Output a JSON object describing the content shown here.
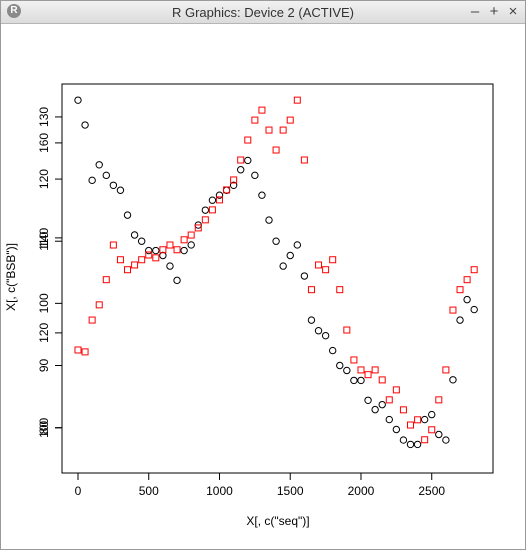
{
  "window_title": "R Graphics: Device 2 (ACTIVE)",
  "window_controls": [
    "–",
    "+",
    "×"
  ],
  "chart_data": {
    "type": "scatter",
    "xlabel": "X[, c(\"seq\")]",
    "ylabel": "X[, c(\"BSB\")]",
    "x": [
      0,
      50,
      100,
      150,
      200,
      250,
      300,
      350,
      400,
      450,
      500,
      550,
      600,
      650,
      700,
      750,
      800,
      850,
      900,
      950,
      1000,
      1050,
      1100,
      1150,
      1200,
      1250,
      1300,
      1350,
      1400,
      1450,
      1500,
      1550,
      1600,
      1650,
      1700,
      1750,
      1800,
      1850,
      1900,
      1950,
      2000,
      2050,
      2100,
      2150,
      2200,
      2250,
      2300,
      2350,
      2400,
      2450,
      2500,
      2550,
      2600,
      2650,
      2700,
      2750,
      2800
    ],
    "xlim": [
      -113,
      2933
    ],
    "xticks": [
      0,
      500,
      1000,
      1500,
      2000,
      2500
    ],
    "ylim": [
      72.7,
      135.3
    ],
    "yticks": [
      80,
      90,
      100,
      110,
      120,
      130
    ],
    "y2lim": [
      90.5,
      172.4
    ],
    "y2ticks": [
      100,
      120,
      140,
      160
    ],
    "series": [
      {
        "color": "#000000",
        "marker": "circle",
        "values": [
          132.7,
          128.7,
          119.8,
          122.3,
          120.6,
          119,
          118.2,
          114.2,
          111,
          110,
          108.5,
          108.5,
          107.7,
          106,
          103.7,
          108.5,
          109.4,
          112.6,
          115,
          116.6,
          117.4,
          118.2,
          119,
          121.5,
          123,
          120.6,
          117.4,
          113.4,
          110,
          106,
          107.7,
          109.4,
          104.4,
          97.3,
          95.6,
          94.8,
          92.4,
          90,
          89.2,
          87.6,
          87.6,
          84.4,
          82.9,
          83.7,
          81.3,
          79.7,
          78,
          77.3,
          77.3,
          81.3,
          82.1,
          78.9,
          78,
          87.7,
          97.3,
          100.6,
          99
        ]
      },
      {
        "color": "#ff0000",
        "marker": "square",
        "axis": "y2",
        "values": [
          116.4,
          116,
          122.7,
          125.9,
          131.2,
          138.5,
          135.4,
          133.3,
          134.3,
          135.4,
          136.4,
          135.8,
          137.5,
          138.5,
          137.5,
          139.6,
          140.6,
          142.1,
          143.8,
          145.9,
          148,
          150.1,
          152.2,
          156.4,
          160.6,
          164.8,
          166.9,
          162.7,
          158.5,
          162.7,
          164.8,
          169,
          156.4,
          129.1,
          134.3,
          133.3,
          135.4,
          129.1,
          120.6,
          114.3,
          112.2,
          111.2,
          112.2,
          110.1,
          105.9,
          108,
          103.8,
          100.6,
          101.7,
          97.5,
          99.6,
          105.9,
          112.2,
          124.8,
          129.1,
          131.2,
          133.3
        ]
      }
    ]
  }
}
